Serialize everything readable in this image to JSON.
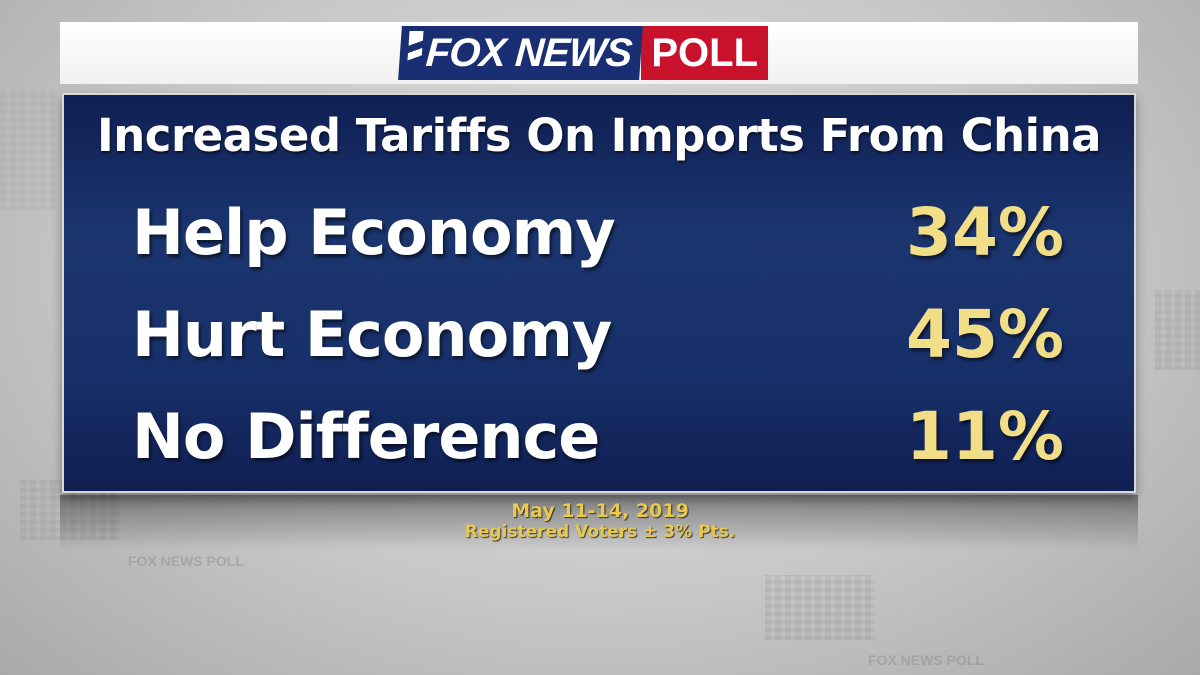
{
  "header": {
    "logo_fox": "FOX NEWS",
    "logo_poll": "POLL"
  },
  "colors": {
    "panel": "#1b356f",
    "value_yellow": "#f2de86",
    "fox_blue": "#1a2f73",
    "poll_red": "#c8122b",
    "footer_text": "#e8c94e"
  },
  "chart_data": {
    "type": "table",
    "title": "Increased Tariffs On Imports From China",
    "rows": [
      {
        "label": "Help Economy",
        "value": 34,
        "display": "34%"
      },
      {
        "label": "Hurt Economy",
        "value": 45,
        "display": "45%"
      },
      {
        "label": "No Difference",
        "value": 11,
        "display": "11%"
      }
    ]
  },
  "footer": {
    "date": "May 11-14, 2019",
    "sample": "Registered Voters ± 3% Pts."
  },
  "background": {
    "watermark": "FOX NEWS POLL"
  }
}
